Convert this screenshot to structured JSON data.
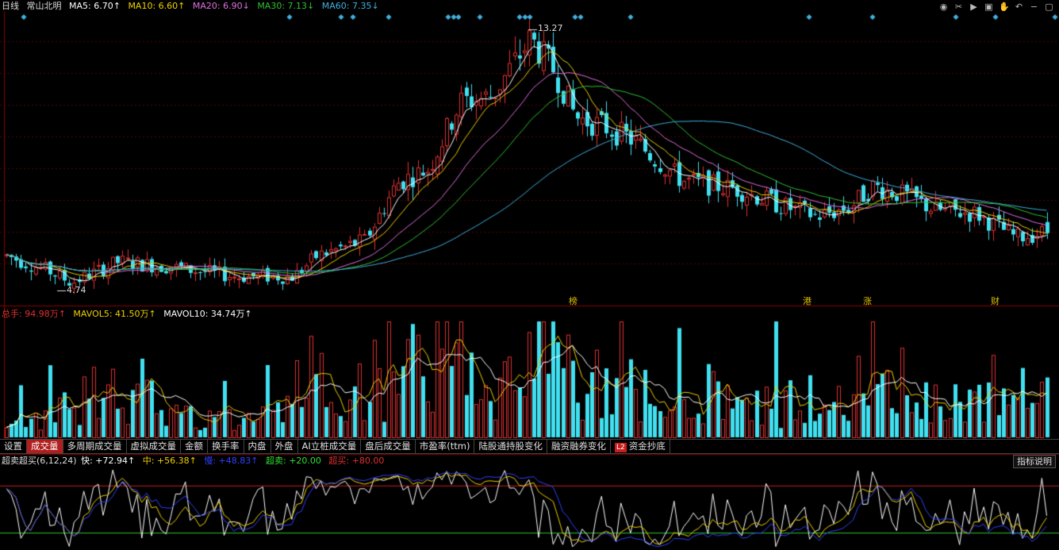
{
  "header": {
    "period": "日线",
    "stock_name": "常山北明",
    "ma": [
      {
        "label": "MA5: 6.70↑",
        "color": "#ffffff"
      },
      {
        "label": "MA10: 6.60↑",
        "color": "#f0d000"
      },
      {
        "label": "MA20: 6.90↓",
        "color": "#e070e0"
      },
      {
        "label": "MA30: 7.13↓",
        "color": "#30c030"
      },
      {
        "label": "MA60: 7.35↓",
        "color": "#40b0e0"
      }
    ]
  },
  "price_labels": {
    "high": "13.27",
    "low": "4.74"
  },
  "events": [
    {
      "text": "榜"
    },
    {
      "text": "港"
    },
    {
      "text": "涨"
    },
    {
      "text": "财"
    }
  ],
  "volume_header": {
    "total": "总手: 94.98万↑",
    "mavol5": "MAVOL5: 41.50万↑",
    "mavol10": "MAVOL10: 34.74万↑"
  },
  "tabs": [
    {
      "label": "设置"
    },
    {
      "label": "成交量",
      "active": true
    },
    {
      "label": "多周期成交量"
    },
    {
      "label": "虚拟成交量"
    },
    {
      "label": "金额"
    },
    {
      "label": "换手率"
    },
    {
      "label": "内盘"
    },
    {
      "label": "外盘"
    },
    {
      "label": "AI立桩成交量"
    },
    {
      "label": "盘后成交量"
    },
    {
      "label": "市盈率(ttm)"
    },
    {
      "label": "陆股通持股变化"
    },
    {
      "label": "融资融券变化"
    },
    {
      "label": "资金抄底",
      "badge": "L2"
    }
  ],
  "indicator": {
    "name": "超卖超买(6,12,24)",
    "fast": "快: +72.94↑",
    "mid": "中: +56.38↑",
    "slow": "慢: +48.83↑",
    "oversold": "超卖: +20.00",
    "overbought": "超买: +80.00",
    "help": "指标说明"
  },
  "toolbar_icons": [
    "eye-icon",
    "scissors-icon",
    "play-icon",
    "lock-icon",
    "hand-icon",
    "undo-icon",
    "minus-icon",
    "square-icon"
  ],
  "colors": {
    "up": "#e03030",
    "down": "#40e0f0",
    "bg": "#000000"
  }
}
